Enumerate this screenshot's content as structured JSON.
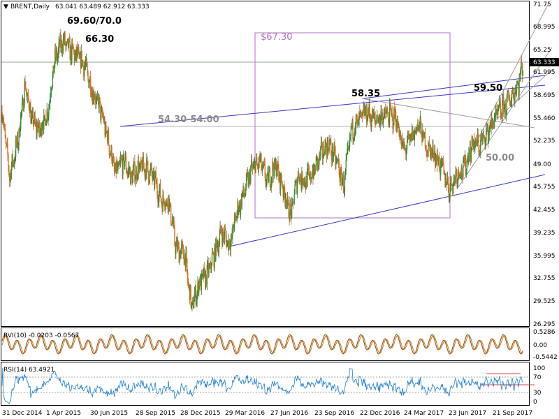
{
  "header": {
    "symbol": "BRENT,Daily",
    "ohlc": "63.041 63.489 62.912 63.333"
  },
  "current_price_label": "63.333",
  "annotations": {
    "high": "69.60/70.0",
    "secondary_high": "66.30",
    "range_top": "$67.30",
    "resistance_zone": "54.30-54.00",
    "peak_2016": "58.35",
    "level_5950": "59.50",
    "level_50": "50.00"
  },
  "indicators": {
    "rvi": {
      "label": "RVI(10) -0.0203 -0.0567",
      "ticks": [
        "0.5286",
        "0.00",
        "-0.5442"
      ]
    },
    "rsi": {
      "label": "RSI(14) 63.4921",
      "ticks": [
        "100",
        "70",
        "30",
        "0"
      ]
    }
  },
  "chart_data": {
    "type": "line",
    "title": "BRENT,Daily",
    "x_tick_labels": [
      "31 Dec 2014",
      "1 Apr 2015",
      "30 Jun 2015",
      "28 Sep 2015",
      "28 Dec 2015",
      "29 Mar 2016",
      "27 Jun 2016",
      "23 Sep 2016",
      "22 Dec 2016",
      "24 Mar 2017",
      "23 Jun 2017",
      "21 Sep 2017"
    ],
    "y_tick_labels": [
      "71.75",
      "68.995",
      "65.25",
      "61.995",
      "58.695",
      "55.460",
      "52.235",
      "49.00",
      "45.755",
      "42.455",
      "39.235",
      "35.995",
      "32.755",
      "29.525",
      "26.295"
    ],
    "ylim": [
      26.295,
      71.75
    ],
    "series": [
      {
        "x": [
          "2014-12-31",
          "2015-01-15",
          "2015-02-01",
          "2015-02-15",
          "2015-03-01",
          "2015-03-15",
          "2015-04-01",
          "2015-04-15",
          "2015-05-01",
          "2015-05-15",
          "2015-06-01",
          "2015-06-15",
          "2015-07-01",
          "2015-07-15",
          "2015-08-01",
          "2015-08-15",
          "2015-09-01",
          "2015-09-15",
          "2015-10-01",
          "2015-10-15",
          "2015-11-01",
          "2015-11-15",
          "2015-12-01",
          "2015-12-15",
          "2016-01-01",
          "2016-01-15",
          "2016-02-01",
          "2016-02-15",
          "2016-03-01",
          "2016-03-15",
          "2016-04-01",
          "2016-04-15",
          "2016-05-01",
          "2016-05-15",
          "2016-06-01",
          "2016-06-15",
          "2016-07-01",
          "2016-07-15",
          "2016-08-01",
          "2016-08-15",
          "2016-09-01",
          "2016-09-15",
          "2016-10-01",
          "2016-10-15",
          "2016-11-01",
          "2016-11-15",
          "2016-12-01",
          "2016-12-15",
          "2017-01-01",
          "2017-01-15",
          "2017-02-01",
          "2017-02-15",
          "2017-03-01",
          "2017-03-15",
          "2017-04-01",
          "2017-04-15",
          "2017-05-01",
          "2017-05-15",
          "2017-06-01",
          "2017-06-15",
          "2017-07-01",
          "2017-07-15",
          "2017-08-01",
          "2017-08-15",
          "2017-09-01",
          "2017-09-15",
          "2017-10-01",
          "2017-10-15",
          "2017-11-01",
          "2017-11-10"
        ],
        "values": [
          56.5,
          47.5,
          52.5,
          60.2,
          55.3,
          53.8,
          56.2,
          63.5,
          66.5,
          65.2,
          64.2,
          63.0,
          59.2,
          57.1,
          52.4,
          47.8,
          49.6,
          47.4,
          48.5,
          48.7,
          47.0,
          44.2,
          43.8,
          37.2,
          36.5,
          28.9,
          32.6,
          33.4,
          36.5,
          39.6,
          37.8,
          42.3,
          45.4,
          48.5,
          49.3,
          46.6,
          49.0,
          46.2,
          41.8,
          47.5,
          46.8,
          47.9,
          50.6,
          52.0,
          49.6,
          46.0,
          54.0,
          55.1,
          56.5,
          55.4,
          55.9,
          56.0,
          55.5,
          51.0,
          52.9,
          54.8,
          51.5,
          50.7,
          48.4,
          45.6,
          47.9,
          48.5,
          52.1,
          51.8,
          53.8,
          55.7,
          57.0,
          58.3,
          60.5,
          63.3
        ]
      }
    ],
    "xlim": [
      "2014-12-31",
      "2017-11-15"
    ],
    "grid": false
  }
}
